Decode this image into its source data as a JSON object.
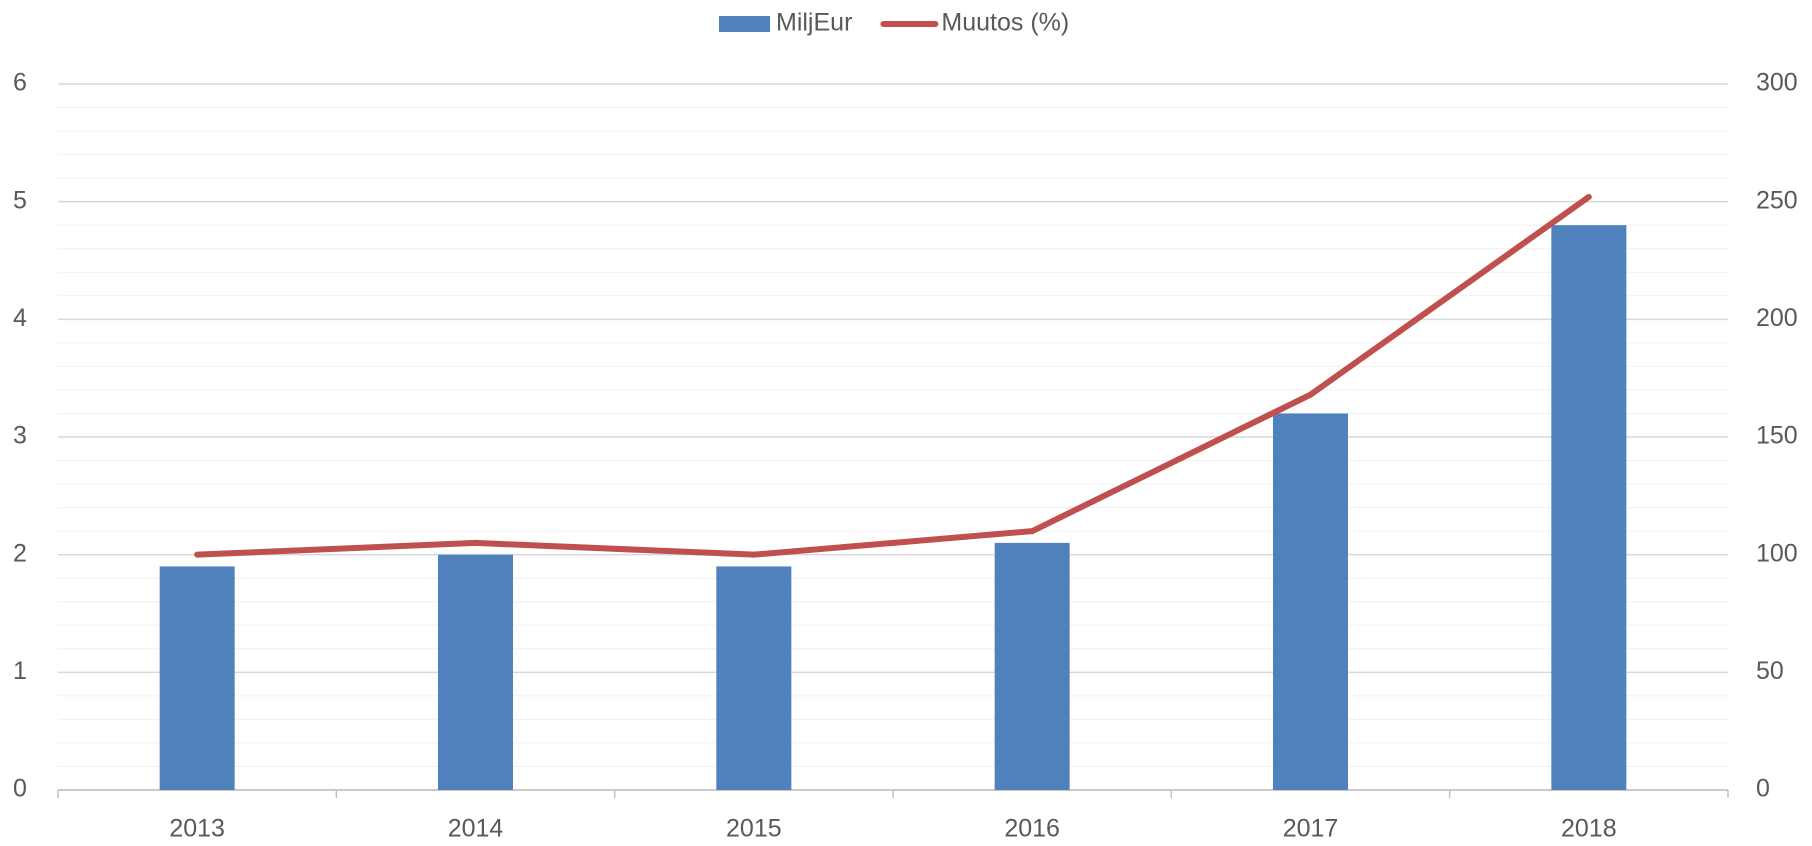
{
  "chart_data": {
    "type": "bar-line",
    "categories": [
      "2013",
      "2014",
      "2015",
      "2016",
      "2017",
      "2018"
    ],
    "series": [
      {
        "name": "MiljEur",
        "type": "bar",
        "color": "#4f81bd",
        "values": [
          1.9,
          2.0,
          1.9,
          2.1,
          3.2,
          4.8
        ]
      },
      {
        "name": "Muutos (%)",
        "type": "line",
        "axis": "y2",
        "color": "#c0504d",
        "values": [
          100,
          105,
          100,
          110,
          168,
          252
        ]
      }
    ],
    "ylim": [
      0,
      6
    ],
    "yticks": [
      0,
      1,
      2,
      3,
      4,
      5,
      6
    ],
    "y2lim": [
      0,
      300
    ],
    "y2ticks": [
      0,
      50,
      100,
      150,
      200,
      250,
      300
    ],
    "minor_yticks": [
      0.2,
      0.4,
      0.6,
      0.8,
      1.2,
      1.4,
      1.6,
      1.8,
      2.2,
      2.4,
      2.6,
      2.8,
      3.2,
      3.4,
      3.6,
      3.8,
      4.2,
      4.4,
      4.6,
      4.8,
      5.2,
      5.4,
      5.6,
      5.8
    ],
    "grid": true,
    "legend": "top"
  }
}
